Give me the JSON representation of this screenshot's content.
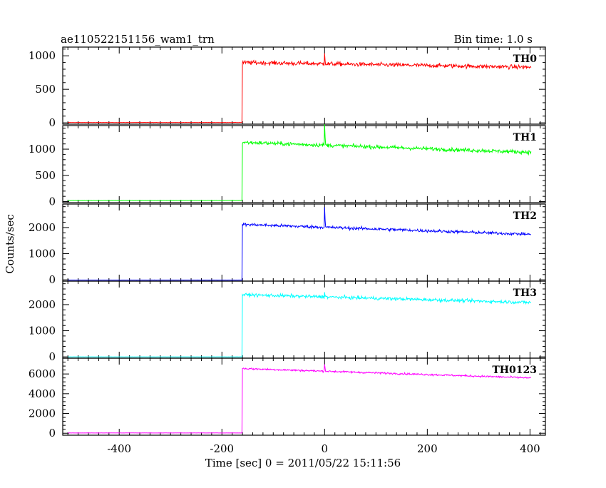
{
  "chart_data": {
    "type": "line",
    "title": "ae110522151156_wam1_trn",
    "subtitle": "Bin time: 1.0 s",
    "xlabel": "Time [sec] 0 = 2011/05/22 15:11:56",
    "ylabel": "Counts/sec",
    "xlim": [
      -510,
      430
    ],
    "xticks": [
      -400,
      -200,
      0,
      200,
      400
    ],
    "grid": false,
    "panels": [
      {
        "name": "TH0",
        "color": "#ff0000",
        "ylim": [
          -20,
          1130
        ],
        "yticks": [
          0,
          500,
          1000
        ],
        "pre_level": 5,
        "step_time": -160,
        "post_start": 900,
        "post_end": 830,
        "noise": 30,
        "spike_time": 0,
        "spike_height": 180
      },
      {
        "name": "TH1",
        "color": "#00ff00",
        "ylim": [
          -20,
          1450
        ],
        "yticks": [
          0,
          500,
          1000
        ],
        "pre_level": 20,
        "step_time": -160,
        "post_start": 1130,
        "post_end": 940,
        "noise": 35,
        "spike_time": 0,
        "spike_height": 400
      },
      {
        "name": "TH2",
        "color": "#0000ff",
        "ylim": [
          -50,
          2900
        ],
        "yticks": [
          0,
          1000,
          2000
        ],
        "pre_level": -10,
        "step_time": -160,
        "post_start": 2120,
        "post_end": 1740,
        "noise": 55,
        "spike_time": 0,
        "spike_height": 750
      },
      {
        "name": "TH3",
        "color": "#00ffff",
        "ylim": [
          -50,
          2900
        ],
        "yticks": [
          0,
          1000,
          2000
        ],
        "pre_level": 0,
        "step_time": -160,
        "post_start": 2380,
        "post_end": 2080,
        "noise": 60,
        "spike_time": 0,
        "spike_height": 200
      },
      {
        "name": "TH0123",
        "color": "#ff00ff",
        "ylim": [
          -200,
          7600
        ],
        "yticks": [
          0,
          2000,
          4000,
          6000
        ],
        "pre_level": 30,
        "step_time": -160,
        "post_start": 6550,
        "post_end": 5600,
        "noise": 90,
        "spike_time": 0,
        "spike_height": 800
      }
    ]
  }
}
